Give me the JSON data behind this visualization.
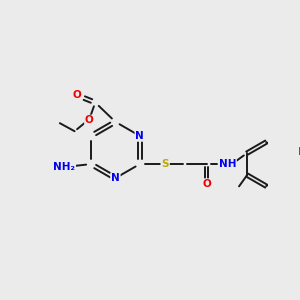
{
  "bg_color": "#ebebeb",
  "bond_color": "#1a1a1a",
  "bond_width": 1.4,
  "atom_colors": {
    "N": "#0000ee",
    "O": "#ee0000",
    "S": "#bbaa00",
    "F": "#dd00dd",
    "C": "#1a1a1a",
    "H": "#666666"
  },
  "font_size": 7.5,
  "fig_size": [
    3.0,
    3.0
  ],
  "dpi": 100
}
